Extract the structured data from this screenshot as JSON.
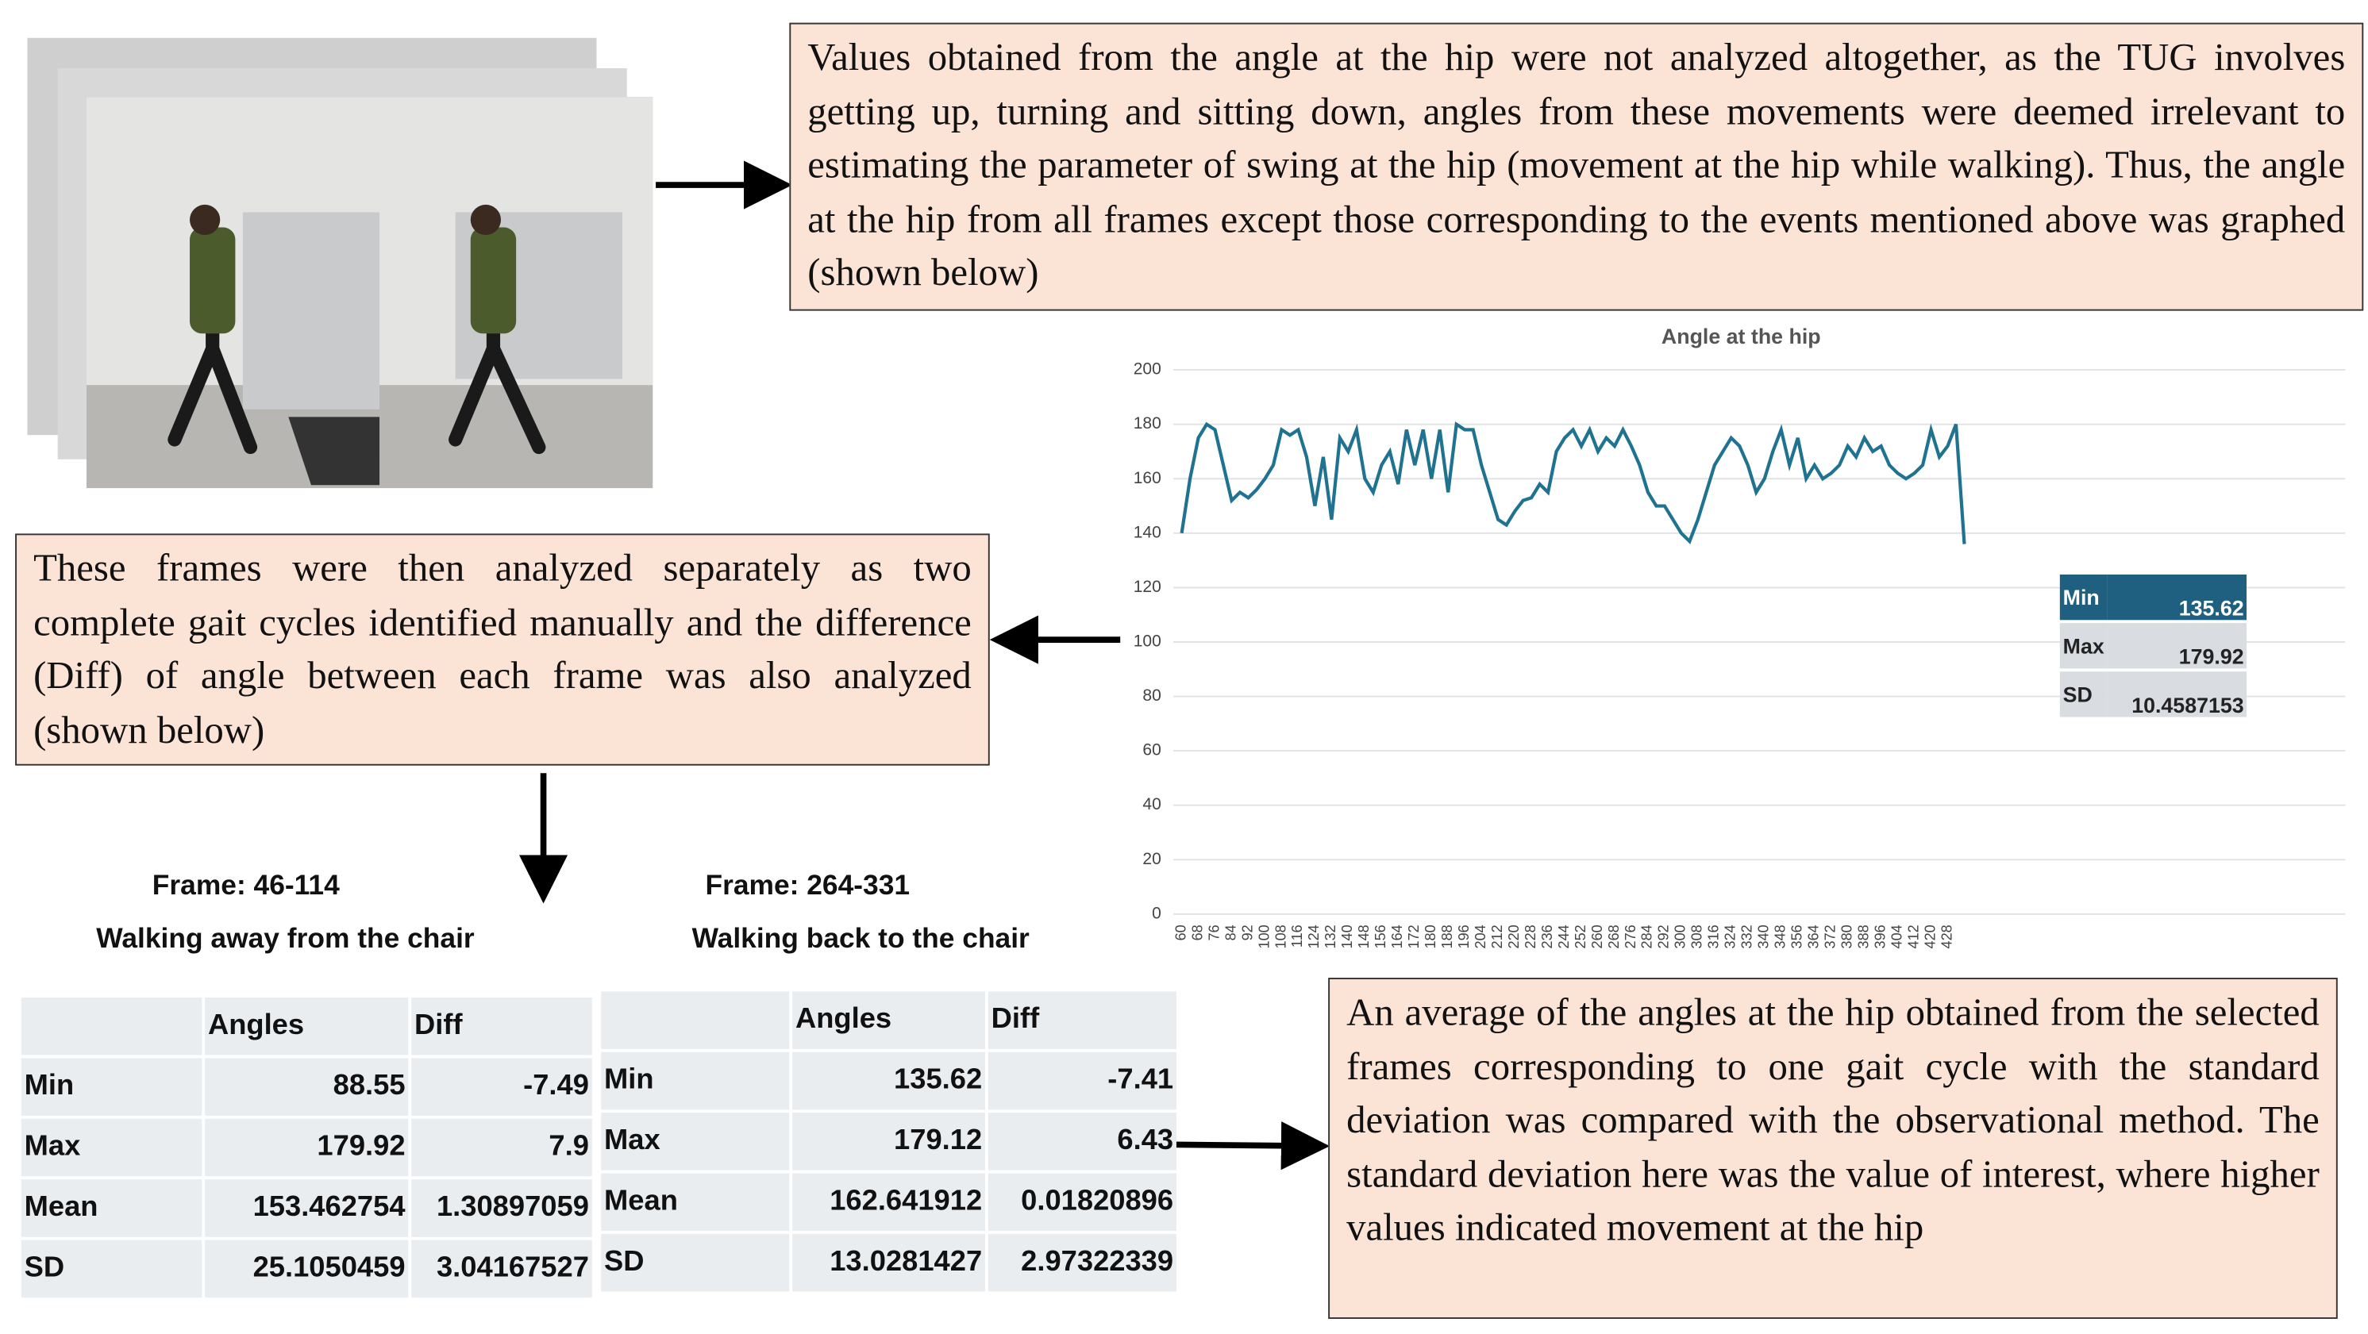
{
  "text_boxes": {
    "hip": "Values obtained from the angle at the hip were not analyzed altogether, as the TUG involves getting up, turning and sitting down, angles from these movements were deemed irrelevant to estimating the parameter of swing at the hip (movement at the hip while walking). Thus, the angle at the hip from all frames except those corresponding to the events mentioned above was graphed (shown below)",
    "frames": "These frames were then analyzed separately as two complete gait cycles identified manually and the difference (Diff) of angle between each frame was also analyzed (shown below)",
    "average": "An average of the angles at the hip obtained from the selected frames corresponding to one gait cycle with the standard deviation was compared with the observational method. The standard deviation here was the value of interest, where higher values indicated movement at the hip"
  },
  "chart_data": {
    "type": "line",
    "title": "Angle at the hip",
    "color": "#1f7391",
    "grid": true,
    "x": [
      60,
      64,
      68,
      72,
      76,
      80,
      84,
      88,
      92,
      96,
      100,
      104,
      108,
      112,
      116,
      120,
      124,
      128,
      132,
      136,
      140,
      144,
      148,
      152,
      156,
      160,
      164,
      168,
      172,
      176,
      180,
      184,
      188,
      192,
      196,
      200,
      204,
      208,
      212,
      216,
      220,
      224,
      228,
      232,
      236,
      240,
      244,
      248,
      252,
      256,
      260,
      264,
      268,
      272,
      276,
      280,
      284,
      288,
      292,
      296,
      300,
      304,
      308,
      312,
      316,
      320,
      324,
      328,
      332,
      336,
      340,
      344,
      348,
      352,
      356,
      360,
      364,
      368,
      372,
      376,
      380,
      384,
      388,
      392,
      396,
      400,
      404,
      408,
      412,
      416,
      420,
      424,
      428,
      432,
      436
    ],
    "values": [
      140,
      160,
      175,
      180,
      178,
      165,
      152,
      155,
      153,
      156,
      160,
      165,
      178,
      176,
      178,
      168,
      150,
      168,
      145,
      175,
      170,
      178,
      160,
      155,
      165,
      170,
      158,
      178,
      165,
      178,
      160,
      178,
      155,
      180,
      178,
      178,
      165,
      155,
      145,
      143,
      148,
      152,
      153,
      158,
      155,
      170,
      175,
      178,
      172,
      178,
      170,
      175,
      172,
      178,
      172,
      165,
      155,
      150,
      150,
      145,
      140,
      137,
      145,
      155,
      165,
      170,
      175,
      172,
      165,
      155,
      160,
      170,
      178,
      165,
      175,
      160,
      165,
      160,
      162,
      165,
      172,
      168,
      175,
      170,
      172,
      165,
      162,
      160,
      162,
      165,
      178,
      168,
      172,
      180,
      136
    ],
    "xlim": [
      56,
      619
    ],
    "ylim": [
      0,
      200
    ],
    "xticks": [
      60,
      68,
      76,
      84,
      92,
      100,
      108,
      116,
      124,
      132,
      140,
      148,
      156,
      164,
      172,
      180,
      188,
      196,
      204,
      212,
      220,
      228,
      236,
      244,
      252,
      260,
      268,
      276,
      284,
      292,
      300,
      308,
      316,
      324,
      332,
      340,
      348,
      356,
      364,
      372,
      380,
      388,
      396,
      404,
      412,
      420,
      428
    ],
    "yticks": [
      0,
      20,
      40,
      60,
      80,
      100,
      120,
      140,
      160,
      180,
      200
    ]
  },
  "chart_stats": {
    "rows": [
      [
        "Min",
        "135.62"
      ],
      [
        "Max",
        "179.92"
      ],
      [
        "SD",
        "10.4587153"
      ]
    ]
  },
  "tables": [
    {
      "frame": "Frame: 46-114",
      "caption": "Walking away from the chair",
      "header": [
        "Angles",
        "Diff"
      ],
      "rows": [
        [
          "Min",
          "88.55",
          "-7.49"
        ],
        [
          "Max",
          "179.92",
          "7.9"
        ],
        [
          "Mean",
          "153.462754",
          "1.30897059"
        ],
        [
          "SD",
          "25.1050459",
          "3.04167527"
        ]
      ]
    },
    {
      "frame": "Frame: 264-331",
      "caption": "Walking back to the chair",
      "header": [
        "Angles",
        "Diff"
      ],
      "rows": [
        [
          "Min",
          "135.62",
          "-7.41"
        ],
        [
          "Max",
          "179.12",
          "6.43"
        ],
        [
          "Mean",
          "162.641912",
          "0.01820896"
        ],
        [
          "SD",
          "13.0281427",
          "2.97322339"
        ]
      ]
    }
  ]
}
